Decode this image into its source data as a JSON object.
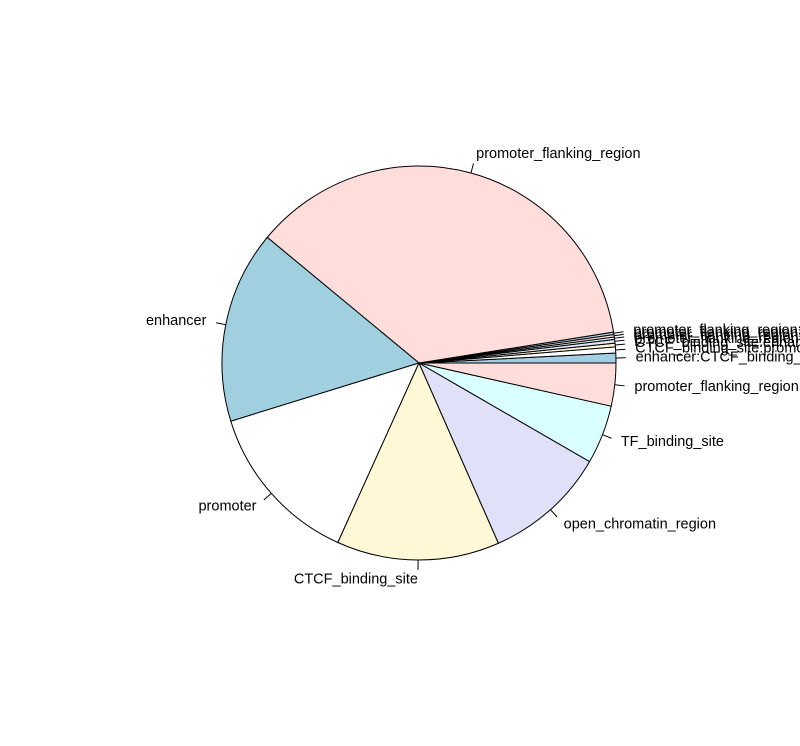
{
  "chart_data": {
    "type": "pie",
    "start_angle_deg": 0,
    "direction": "counterclockwise",
    "grid": false,
    "legend": "none",
    "slices": [
      {
        "label": "enhancer:CTCF_binding_site",
        "value": 0.8,
        "color": "#A6CEE3"
      },
      {
        "label": "CTCF_binding_site:promoter",
        "value": 0.5,
        "color": "#FFFFFF"
      },
      {
        "label": "CTCF_binding_site:enhancer",
        "value": 0.3,
        "color": "#FFF8D6"
      },
      {
        "label": "promoter_flanking_region:CTCF_binding_site",
        "value": 0.3,
        "color": "#E2E2F8"
      },
      {
        "label": "promoter_flanking_region:promoter",
        "value": 0.2,
        "color": "#D9FFFF"
      },
      {
        "label": "promoter_flanking_region:enhancer",
        "value": 0.2,
        "color": "#FFDDDB"
      },
      {
        "label": "promoter_flanking_region:open_chromatin_region",
        "value": 0.2,
        "color": "#A6CEE3"
      },
      {
        "label": "promoter_flanking_region",
        "value": 36.3,
        "color": "#FFDDDB"
      },
      {
        "label": "enhancer",
        "value": 15.7,
        "color": "#A0CFE0"
      },
      {
        "label": "promoter",
        "value": 13.4,
        "color": "#FFFFFF"
      },
      {
        "label": "CTCF_binding_site",
        "value": 13.3,
        "color": "#FFF8D6"
      },
      {
        "label": "open_chromatin_region",
        "value": 10.0,
        "color": "#E0E0F8"
      },
      {
        "label": "TF_binding_site",
        "value": 4.8,
        "color": "#D9FFFF"
      },
      {
        "label": "promoter_flanking_region",
        "value": 3.5,
        "color": "#FFDDDB"
      }
    ]
  }
}
